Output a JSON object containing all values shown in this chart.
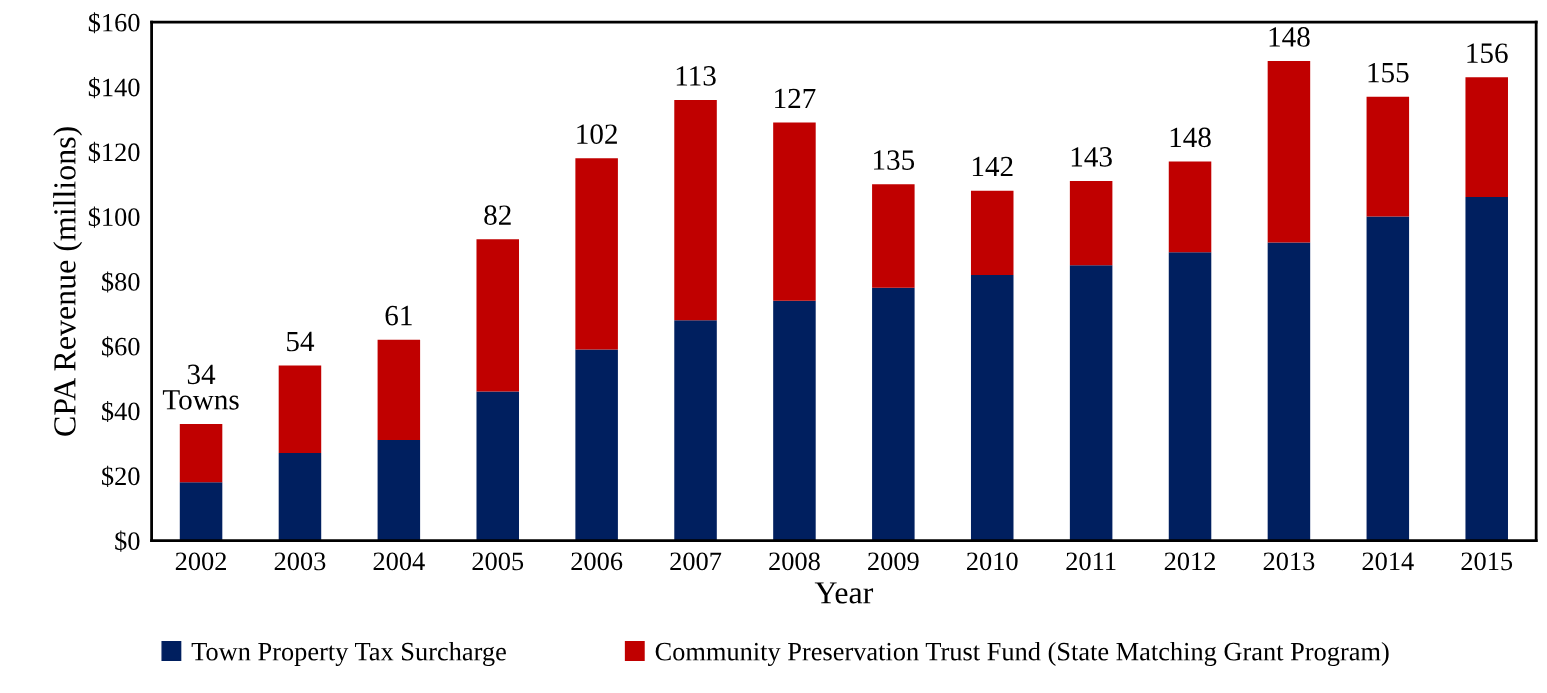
{
  "chart_data": {
    "type": "bar",
    "stacked": true,
    "xlabel": "Year",
    "ylabel": "CPA Revenue (millions)",
    "categories": [
      "2002",
      "2003",
      "2004",
      "2005",
      "2006",
      "2007",
      "2008",
      "2009",
      "2010",
      "2011",
      "2012",
      "2013",
      "2014",
      "2015"
    ],
    "series": [
      {
        "name": "Town Property Tax Surcharge",
        "color": "#001f5f",
        "values": [
          18,
          27,
          31,
          46,
          59,
          68,
          74,
          78,
          82,
          85,
          89,
          92,
          100,
          106
        ]
      },
      {
        "name": "Community Preservation Trust Fund (State Matching Grant Program)",
        "color": "#c00000",
        "values": [
          18,
          27,
          31,
          47,
          59,
          68,
          55,
          32,
          26,
          26,
          28,
          56,
          37,
          37
        ]
      }
    ],
    "ylim": [
      0,
      160
    ],
    "yticks": [
      {
        "value": 0,
        "label": "$0"
      },
      {
        "value": 20,
        "label": "$20"
      },
      {
        "value": 40,
        "label": "$40"
      },
      {
        "value": 60,
        "label": "$60"
      },
      {
        "value": 80,
        "label": "$80"
      },
      {
        "value": 100,
        "label": "$100"
      },
      {
        "value": 120,
        "label": "$120"
      },
      {
        "value": 140,
        "label": "$140"
      },
      {
        "value": 160,
        "label": "$160"
      }
    ],
    "annotations": [
      {
        "text": "34\nTowns",
        "x": "2002",
        "y": 36
      },
      {
        "text": "54",
        "x": "2003",
        "y": 54
      },
      {
        "text": "61",
        "x": "2004",
        "y": 62
      },
      {
        "text": "82",
        "x": "2005",
        "y": 93
      },
      {
        "text": "102",
        "x": "2006",
        "y": 118
      },
      {
        "text": "113",
        "x": "2007",
        "y": 136
      },
      {
        "text": "127",
        "x": "2008",
        "y": 129
      },
      {
        "text": "135",
        "x": "2009",
        "y": 110
      },
      {
        "text": "142",
        "x": "2010",
        "y": 108
      },
      {
        "text": "143",
        "x": "2011",
        "y": 111
      },
      {
        "text": "148",
        "x": "2012",
        "y": 117
      },
      {
        "text": "148",
        "x": "2013",
        "y": 148
      },
      {
        "text": "155",
        "x": "2014",
        "y": 137
      },
      {
        "text": "156",
        "x": "2015",
        "y": 143
      }
    ],
    "grid": false,
    "legend": "bottom"
  }
}
